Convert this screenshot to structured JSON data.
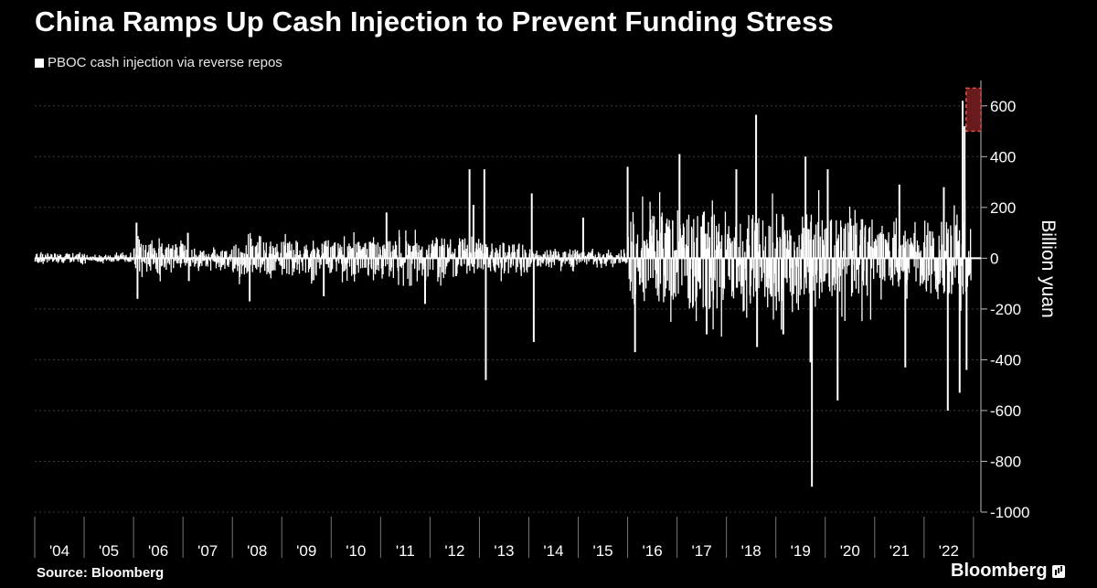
{
  "chart_data": {
    "type": "bar",
    "title": "China Ramps Up Cash Injection to Prevent Funding Stress",
    "legend": [
      "PBOC cash injection via reverse repos"
    ],
    "ylabel": "Billion yuan",
    "ylim": [
      -1000,
      700
    ],
    "yticks": [
      600,
      400,
      200,
      0,
      -200,
      -400,
      -600,
      -800,
      -1000
    ],
    "xlim": [
      2004,
      2023.15
    ],
    "x_tick_labels": [
      "'04",
      "'05",
      "'06",
      "'07",
      "'08",
      "'09",
      "'10",
      "'11",
      "'12",
      "'13",
      "'14",
      "'15",
      "'16",
      "'17",
      "'18",
      "'19",
      "'20",
      "'21",
      "'22"
    ],
    "grid": true,
    "series_name": "PBOC cash injection via reverse repos",
    "highlight": {
      "x_from": 2022.85,
      "x_to": 2023.15,
      "y_from": 500,
      "y_to": 670
    },
    "spikes": [
      {
        "x": 2006.06,
        "y": 140
      },
      {
        "x": 2006.08,
        "y": -160
      },
      {
        "x": 2007.1,
        "y": 100
      },
      {
        "x": 2007.12,
        "y": -90
      },
      {
        "x": 2008.35,
        "y": -170
      },
      {
        "x": 2009.85,
        "y": -150
      },
      {
        "x": 2011.12,
        "y": 180
      },
      {
        "x": 2011.9,
        "y": -180
      },
      {
        "x": 2012.8,
        "y": 350
      },
      {
        "x": 2012.88,
        "y": 210
      },
      {
        "x": 2013.1,
        "y": 350
      },
      {
        "x": 2013.13,
        "y": -480
      },
      {
        "x": 2014.06,
        "y": 255
      },
      {
        "x": 2014.1,
        "y": -330
      },
      {
        "x": 2015.1,
        "y": 160
      },
      {
        "x": 2016.0,
        "y": 360
      },
      {
        "x": 2016.15,
        "y": -370
      },
      {
        "x": 2017.05,
        "y": 410
      },
      {
        "x": 2017.6,
        "y": -300
      },
      {
        "x": 2018.2,
        "y": 350
      },
      {
        "x": 2018.6,
        "y": 565
      },
      {
        "x": 2018.62,
        "y": -350
      },
      {
        "x": 2019.15,
        "y": -300
      },
      {
        "x": 2019.6,
        "y": 400
      },
      {
        "x": 2019.7,
        "y": -410
      },
      {
        "x": 2019.73,
        "y": -900
      },
      {
        "x": 2020.05,
        "y": 350
      },
      {
        "x": 2020.25,
        "y": -560
      },
      {
        "x": 2021.5,
        "y": 290
      },
      {
        "x": 2021.62,
        "y": -430
      },
      {
        "x": 2022.4,
        "y": 280
      },
      {
        "x": 2022.48,
        "y": -600
      },
      {
        "x": 2022.72,
        "y": -530
      },
      {
        "x": 2022.78,
        "y": 620
      },
      {
        "x": 2022.82,
        "y": 520
      },
      {
        "x": 2022.86,
        "y": -440
      }
    ],
    "volatility_by_year": [
      {
        "year": 2004,
        "amplitude": 20
      },
      {
        "year": 2005,
        "amplitude": 15
      },
      {
        "year": 2006,
        "amplitude": 60
      },
      {
        "year": 2007,
        "amplitude": 35
      },
      {
        "year": 2008,
        "amplitude": 65
      },
      {
        "year": 2009,
        "amplitude": 70
      },
      {
        "year": 2010,
        "amplitude": 65
      },
      {
        "year": 2011,
        "amplitude": 70
      },
      {
        "year": 2012,
        "amplitude": 80
      },
      {
        "year": 2013,
        "amplitude": 60
      },
      {
        "year": 2014,
        "amplitude": 35
      },
      {
        "year": 2015,
        "amplitude": 25
      },
      {
        "year": 2016,
        "amplitude": 170
      },
      {
        "year": 2017,
        "amplitude": 200
      },
      {
        "year": 2018,
        "amplitude": 160
      },
      {
        "year": 2019,
        "amplitude": 180
      },
      {
        "year": 2020,
        "amplitude": 160
      },
      {
        "year": 2021,
        "amplitude": 110
      },
      {
        "year": 2022,
        "amplitude": 150
      }
    ]
  },
  "footer": {
    "source": "Source: Bloomberg",
    "brand": "Bloomberg"
  },
  "colors": {
    "background": "#000000",
    "bars": "#ffffff",
    "grid": "#3c3c3c",
    "highlight_fill": "#7a1f22",
    "highlight_border": "#d9534f"
  },
  "icons": {
    "brand_icon": "bar-chart-icon"
  }
}
